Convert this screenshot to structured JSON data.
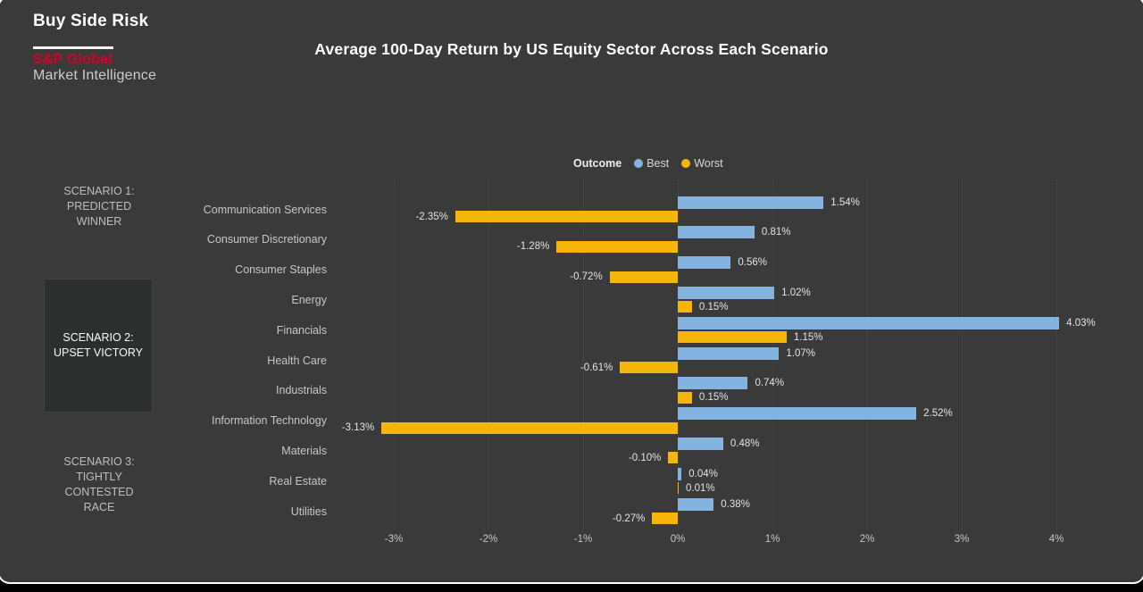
{
  "branding": {
    "product": "Buy Side Risk",
    "brand": "S&P Global",
    "division": "Market Intelligence",
    "brand_color": "#D6002A"
  },
  "title": "Average 100-Day Return by US Equity Sector Across Each Scenario",
  "legend": {
    "title": "Outcome",
    "items": [
      {
        "label": "Best",
        "color": "#85B3E0"
      },
      {
        "label": "Worst",
        "color": "#F5B609"
      }
    ]
  },
  "scenarios": [
    {
      "lines": [
        "SCENARIO 1:",
        "PREDICTED",
        "WINNER"
      ],
      "selected": false
    },
    {
      "lines": [
        "SCENARIO 2:",
        "UPSET VICTORY"
      ],
      "selected": true
    },
    {
      "lines": [
        "SCENARIO 3:",
        "TIGHTLY",
        "CONTESTED",
        "RACE"
      ],
      "selected": false
    }
  ],
  "colors": {
    "card_background": "#3A3A3A",
    "selected_box": "#2D2E2E",
    "best_bar": "#85B3E0",
    "worst_bar": "#F5B609"
  },
  "chart_data": {
    "type": "bar",
    "orientation": "horizontal",
    "title": "Average 100-Day Return by US Equity Sector Across Each Scenario",
    "categories": [
      "Communication Services",
      "Consumer Discretionary",
      "Consumer Staples",
      "Energy",
      "Financials",
      "Health Care",
      "Industrials",
      "Information Technology",
      "Materials",
      "Real Estate",
      "Utilities"
    ],
    "series": [
      {
        "name": "Best",
        "color": "#85B3E0",
        "values": [
          1.54,
          0.81,
          0.56,
          1.02,
          4.03,
          1.07,
          0.74,
          2.52,
          0.48,
          0.04,
          0.38
        ]
      },
      {
        "name": "Worst",
        "color": "#F5B609",
        "values": [
          -2.35,
          -1.28,
          -0.72,
          0.15,
          1.15,
          -0.61,
          0.15,
          -3.13,
          -0.1,
          0.01,
          -0.27
        ]
      }
    ],
    "value_labels": {
      "Best": [
        "1.54%",
        "0.81%",
        "0.56%",
        "1.02%",
        "4.03%",
        "1.07%",
        "0.74%",
        "2.52%",
        "0.48%",
        "0.04%",
        "0.38%"
      ],
      "Worst": [
        "-2.35%",
        "-1.28%",
        "-0.72%",
        "0.15%",
        "1.15%",
        "-0.61%",
        "0.15%",
        "-3.13%",
        "-0.10%",
        "0.01%",
        "-0.27%"
      ]
    },
    "xticks": [
      "-3%",
      "-2%",
      "-1%",
      "0%",
      "1%",
      "2%",
      "3%",
      "4%"
    ],
    "xtick_values": [
      -3,
      -2,
      -1,
      0,
      1,
      2,
      3,
      4
    ],
    "xlim": [
      -3.5,
      4.6
    ],
    "xlabel": "",
    "ylabel": "",
    "grid": "dotted-vertical",
    "legend_position": "top-center"
  }
}
